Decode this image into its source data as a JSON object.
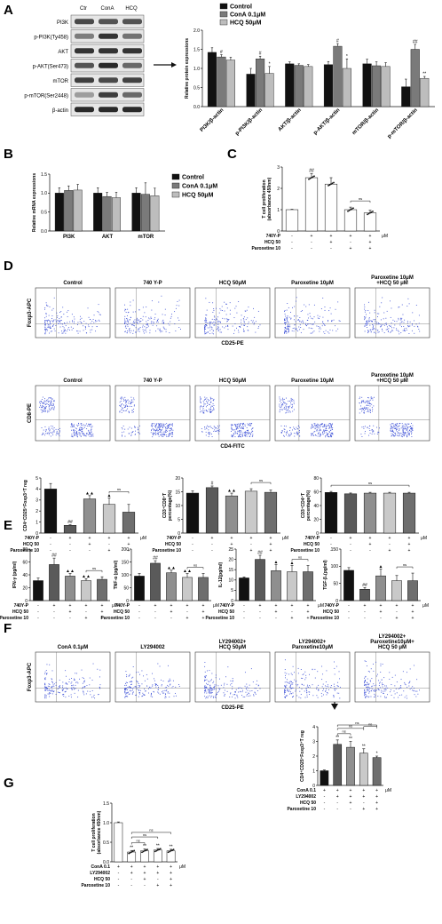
{
  "panel_labels": [
    "A",
    "B",
    "C",
    "D",
    "E",
    "F",
    "G"
  ],
  "colors": {
    "black": "#111111",
    "dark_gray": "#5a5a5a",
    "mid_gray": "#8f8f8f",
    "light_gray": "#c9c9c9",
    "lighter_gray": "#dedede",
    "white": "#ffffff",
    "flow_dots": "#3b4fd6"
  },
  "panel_a": {
    "blot_lanes": [
      "Ctr",
      "ConA",
      "HCQ"
    ],
    "blot_rows": [
      "PI3K",
      "p-PI3K(Ty458)",
      "AKT",
      "p-AKT(Ser473)",
      "mTOR",
      "p-mTOR(Ser2448)",
      "β-actin"
    ],
    "arrow_icon": "right-arrow-icon"
  },
  "panel_d": {
    "treg_titles": [
      "Control",
      "740 Y-P",
      "HCQ 50μM",
      "Paroxetine 10μM",
      "Paroxetine 10μM\n+HCQ 50 μM"
    ],
    "treg_ylabel": "Foxp3-APC",
    "treg_xlabel": "CD25-PE",
    "cd8_titles": [
      "Control",
      "740 Y-P",
      "HCQ 50μM",
      "Paroxetine 10μM",
      "Paroxetine 10μM\n+HCQ 50 μM"
    ],
    "cd8_ylabel": "CD8-PE",
    "cd8_xlabel": "CD4-FITC"
  },
  "panel_f": {
    "titles": [
      "ConA 0.1μM",
      "LY294002",
      "LY294002+\nHCQ 50μM",
      "LY294002+\nParoxetine10μM",
      "LY294002+\nParoxetine10μM+\nHCQ 50 μM"
    ],
    "ylabel": "Foxp3-APC",
    "xlabel": "CD25-PE",
    "arrow_icon": "down-arrow-icon"
  },
  "chart_data": [
    {
      "id": "A-bar",
      "type": "bar",
      "categories": [
        "PI3K/β-actin",
        "p-PI3K/β-actin",
        "AKT/β-actin",
        "p-AKT/β-actin",
        "mTOR/β-actin",
        "p-mTOR/β-actin"
      ],
      "series": [
        {
          "name": "Control",
          "values": [
            1.42,
            0.85,
            1.12,
            1.1,
            1.12,
            0.52
          ],
          "err": [
            0.12,
            0.15,
            0.05,
            0.08,
            0.12,
            0.2
          ],
          "color": "#111111"
        },
        {
          "name": "ConA 0.1μM",
          "values": [
            1.3,
            1.25,
            1.08,
            1.58,
            1.07,
            1.5
          ],
          "err": [
            0.06,
            0.07,
            0.04,
            0.07,
            0.1,
            0.13
          ],
          "color": "#7a7a7a"
        },
        {
          "name": "HCQ 50μM",
          "values": [
            1.22,
            0.87,
            1.05,
            1.0,
            1.05,
            0.74
          ],
          "err": [
            0.07,
            0.18,
            0.05,
            0.25,
            0.1,
            0.05
          ],
          "color": "#bdbdbd"
        }
      ],
      "ylabel": "Relative protein expressions",
      "ylim": [
        0,
        2
      ],
      "yticks": [
        "0.0",
        "0.5",
        "1.0",
        "1.5",
        "2.0"
      ],
      "marks": [
        [
          "",
          "#",
          ""
        ],
        [
          "",
          "#",
          "*"
        ],
        [
          "",
          "",
          ""
        ],
        [
          "",
          "#",
          "*"
        ],
        [
          "",
          "",
          ""
        ],
        [
          "",
          "##",
          "**"
        ]
      ],
      "legend": "top"
    },
    {
      "id": "B-bar",
      "type": "bar",
      "categories": [
        "PI3K",
        "AKT",
        "mTOR"
      ],
      "series": [
        {
          "name": "Control",
          "values": [
            1.0,
            1.0,
            1.0
          ],
          "err": [
            0.14,
            0.14,
            0.14
          ],
          "color": "#111111"
        },
        {
          "name": "ConA 0.1μM",
          "values": [
            1.07,
            0.91,
            0.97
          ],
          "err": [
            0.12,
            0.11,
            0.3
          ],
          "color": "#7a7a7a"
        },
        {
          "name": "HCQ 50μM",
          "values": [
            1.08,
            0.88,
            0.93
          ],
          "err": [
            0.15,
            0.14,
            0.2
          ],
          "color": "#bdbdbd"
        }
      ],
      "ylabel": "Relative mRNA expressions",
      "ylim": [
        0,
        1.5
      ],
      "yticks": [
        "0.0",
        "0.5",
        "1.0",
        "1.5"
      ],
      "legend": "right"
    },
    {
      "id": "C-bar",
      "type": "bar",
      "categories": [
        "1",
        "2",
        "3",
        "4",
        "5"
      ],
      "values": [
        1.0,
        2.5,
        2.2,
        1.0,
        0.85
      ],
      "err": [
        0.02,
        0.2,
        0.3,
        0.12,
        0.12
      ],
      "colors": [
        "#ffffff",
        "#ffffff",
        "#ffffff",
        "#ffffff",
        "#ffffff"
      ],
      "ylabel": "T cell proliferation\n(absorbance 450nm)",
      "ylim": [
        0,
        3
      ],
      "yticks": [
        "0",
        "1",
        "2",
        "3"
      ],
      "marks": [
        "",
        "##",
        "",
        "",
        ""
      ],
      "conditions": [
        [
          "740Y-P",
          "-",
          "+",
          "+",
          "+",
          "+"
        ],
        [
          "HCQ 50",
          "-",
          "-",
          "+",
          "-",
          "+"
        ],
        [
          "Paroxetine 10",
          "-",
          "-",
          "-",
          "+",
          "+"
        ]
      ],
      "unit": "μM",
      "brackets": [
        [
          3,
          4,
          "ns"
        ]
      ]
    },
    {
      "id": "D-treg-bar",
      "type": "bar",
      "categories": [
        "1",
        "2",
        "3",
        "4",
        "5"
      ],
      "values": [
        4.0,
        0.7,
        3.1,
        2.6,
        1.9
      ],
      "err": [
        0.5,
        0.05,
        0.3,
        0.6,
        0.7
      ],
      "colors": [
        "#111111",
        "#5a5a5a",
        "#8f8f8f",
        "#c9c9c9",
        "#6e6e6e"
      ],
      "ylabel": "CD4⁺CD25⁺Foxp3⁺T reg",
      "ylim": [
        0,
        5
      ],
      "yticks": [
        "0",
        "1",
        "2",
        "3",
        "4",
        "5"
      ],
      "marks": [
        "",
        "##",
        "▲▲",
        "▲",
        ""
      ],
      "conditions": [
        [
          "740Y-P",
          "-",
          "+",
          "+",
          "+",
          "+"
        ],
        [
          "HCQ 50",
          "-",
          "-",
          "+",
          "-",
          "+"
        ],
        [
          "Paroxetine 10",
          "-",
          "-",
          "-",
          "+",
          "+"
        ]
      ],
      "unit": "μM",
      "brackets": [
        [
          3,
          4,
          "ns"
        ]
      ]
    },
    {
      "id": "D-cd8-bar",
      "type": "bar",
      "categories": [
        "1",
        "2",
        "3",
        "4",
        "5"
      ],
      "values": [
        14.5,
        16.5,
        13.5,
        15.2,
        14.8
      ],
      "err": [
        0.8,
        0.6,
        1.0,
        0.9,
        0.8
      ],
      "colors": [
        "#111111",
        "#5a5a5a",
        "#8f8f8f",
        "#c9c9c9",
        "#6e6e6e"
      ],
      "ylabel": "CD3⁺CD8⁺T\npercentage(%)",
      "ylim": [
        0,
        20
      ],
      "yticks": [
        "0",
        "5",
        "10",
        "15",
        "20"
      ],
      "marks": [
        "",
        "#",
        "▲▲",
        "",
        ""
      ],
      "conditions": [
        [
          "740Y-P",
          "-",
          "+",
          "+",
          "+",
          "+"
        ],
        [
          "HCQ 50",
          "-",
          "-",
          "+",
          "-",
          "+"
        ],
        [
          "Paroxetine 10",
          "-",
          "-",
          "-",
          "+",
          "+"
        ]
      ],
      "unit": "μM",
      "brackets": [
        [
          3,
          4,
          "ns"
        ]
      ]
    },
    {
      "id": "D-cd4-bar",
      "type": "bar",
      "categories": [
        "1",
        "2",
        "3",
        "4",
        "5"
      ],
      "values": [
        59,
        57,
        58,
        58,
        58
      ],
      "err": [
        1.5,
        1.2,
        1.2,
        1.2,
        1.2
      ],
      "colors": [
        "#111111",
        "#5a5a5a",
        "#8f8f8f",
        "#c9c9c9",
        "#6e6e6e"
      ],
      "ylabel": "CD3⁺CD4⁺T\npercentage(%)",
      "ylim": [
        0,
        80
      ],
      "yticks": [
        "0",
        "20",
        "40",
        "60",
        "80"
      ],
      "marks": [
        "",
        "",
        "",
        "",
        ""
      ],
      "conditions": [
        [
          "740Y-P",
          "-",
          "+",
          "+",
          "+",
          "+"
        ],
        [
          "HCQ 50",
          "-",
          "-",
          "+",
          "-",
          "+"
        ],
        [
          "Paroxetine 10",
          "-",
          "-",
          "-",
          "+",
          "+"
        ]
      ],
      "unit": "μM",
      "brackets": [
        [
          0,
          4,
          "ns"
        ]
      ]
    },
    {
      "id": "E-ifn",
      "type": "bar",
      "categories": [
        "1",
        "2",
        "3",
        "4",
        "5"
      ],
      "values": [
        31,
        56,
        38,
        31,
        33
      ],
      "err": [
        4,
        10,
        4,
        3,
        4
      ],
      "colors": [
        "#111111",
        "#5a5a5a",
        "#8f8f8f",
        "#c9c9c9",
        "#6e6e6e"
      ],
      "ylabel": "IFN-γ (pg/ml)",
      "ylim": [
        0,
        80
      ],
      "yticks": [
        "0",
        "20",
        "40",
        "60",
        "80"
      ],
      "marks": [
        "",
        "##",
        "▲▲",
        "▲▲",
        ""
      ],
      "conditions": [
        [
          "740Y-P",
          "-",
          "+",
          "+",
          "+",
          "+"
        ],
        [
          "HCQ 50",
          "-",
          "-",
          "+",
          "-",
          "+"
        ],
        [
          "Paroxetine 10",
          "-",
          "-",
          "-",
          "+",
          "+"
        ]
      ],
      "unit": "μM",
      "brackets": [
        [
          3,
          4,
          "ns"
        ]
      ]
    },
    {
      "id": "E-tnf",
      "type": "bar",
      "categories": [
        "1",
        "2",
        "3",
        "4",
        "5"
      ],
      "values": [
        95,
        145,
        108,
        90,
        90
      ],
      "err": [
        10,
        10,
        10,
        15,
        15
      ],
      "colors": [
        "#111111",
        "#5a5a5a",
        "#8f8f8f",
        "#c9c9c9",
        "#6e6e6e"
      ],
      "ylabel": "TNF-α (pg/ml)",
      "ylim": [
        0,
        200
      ],
      "yticks": [
        "0",
        "50",
        "100",
        "150",
        "200"
      ],
      "marks": [
        "",
        "##",
        "▲▲",
        "▲▲",
        ""
      ],
      "conditions": [
        [
          "740Y-P",
          "-",
          "+",
          "+",
          "+",
          "+"
        ],
        [
          "HCQ 50",
          "-",
          "-",
          "+",
          "-",
          "+"
        ],
        [
          "Paroxetine 10",
          "-",
          "-",
          "-",
          "+",
          "+"
        ]
      ],
      "unit": "μM",
      "brackets": [
        [
          3,
          4,
          "ns"
        ]
      ]
    },
    {
      "id": "E-il12",
      "type": "bar",
      "categories": [
        "1",
        "2",
        "3",
        "4",
        "5"
      ],
      "values": [
        11,
        20,
        14.5,
        14,
        14
      ],
      "err": [
        0.5,
        2,
        3,
        3,
        3
      ],
      "colors": [
        "#111111",
        "#5a5a5a",
        "#8f8f8f",
        "#c9c9c9",
        "#6e6e6e"
      ],
      "ylabel": "IL-12(pg/ml)",
      "ylim": [
        0,
        25
      ],
      "yticks": [
        "0",
        "5",
        "10",
        "15",
        "20",
        "25"
      ],
      "marks": [
        "",
        "##",
        "▲",
        "▲",
        ""
      ],
      "conditions": [
        [
          "740Y-P",
          "-",
          "+",
          "+",
          "+",
          "+"
        ],
        [
          "HCQ 50",
          "-",
          "-",
          "+",
          "-",
          "+"
        ],
        [
          "Paroxetine 10",
          "-",
          "-",
          "-",
          "+",
          "+"
        ]
      ],
      "unit": "μM",
      "brackets": [
        [
          3,
          4,
          "ns"
        ]
      ]
    },
    {
      "id": "E-tgf",
      "type": "bar",
      "categories": [
        "1",
        "2",
        "3",
        "4",
        "5"
      ],
      "values": [
        88,
        33,
        72,
        58,
        58
      ],
      "err": [
        8,
        5,
        20,
        15,
        22
      ],
      "colors": [
        "#111111",
        "#5a5a5a",
        "#8f8f8f",
        "#c9c9c9",
        "#6e6e6e"
      ],
      "ylabel": "TGF-β₁(pg/ml)",
      "ylim": [
        0,
        150
      ],
      "yticks": [
        "0",
        "50",
        "100",
        "150"
      ],
      "marks": [
        "",
        "##",
        "▲",
        "",
        ""
      ],
      "conditions": [
        [
          "740Y-P",
          "-",
          "+",
          "+",
          "+",
          "+"
        ],
        [
          "HCQ 50",
          "-",
          "-",
          "+",
          "-",
          "+"
        ],
        [
          "Paroxetine 10",
          "-",
          "-",
          "-",
          "+",
          "+"
        ]
      ],
      "unit": "μM",
      "brackets": [
        [
          3,
          4,
          "ns"
        ]
      ]
    },
    {
      "id": "G-prolif",
      "type": "bar",
      "categories": [
        "1",
        "2",
        "3",
        "4",
        "5"
      ],
      "values": [
        1.0,
        0.25,
        0.28,
        0.3,
        0.28
      ],
      "err": [
        0.02,
        0.04,
        0.05,
        0.04,
        0.04
      ],
      "colors": [
        "#ffffff",
        "#ffffff",
        "#ffffff",
        "#ffffff",
        "#ffffff"
      ],
      "ylabel": "T cell proliferation\n(absorbance 450nm)",
      "ylim": [
        0,
        1.5
      ],
      "yticks": [
        "0.0",
        "0.5",
        "1.0",
        "1.5"
      ],
      "marks": [
        "",
        "**",
        "**",
        "**",
        "**"
      ],
      "conditions": [
        [
          "ConA 0.1",
          "+",
          "+",
          "+",
          "+",
          "+"
        ],
        [
          "LY294002",
          "-",
          "+",
          "+",
          "+",
          "+"
        ],
        [
          "HCQ 50",
          "-",
          "-",
          "+",
          "-",
          "+"
        ],
        [
          "Paroxetine 10",
          "-",
          "-",
          "-",
          "+",
          "+"
        ]
      ],
      "unit": "μM",
      "brackets": [
        [
          1,
          2,
          "ns"
        ],
        [
          1,
          3,
          "ns"
        ],
        [
          1,
          4,
          "ns"
        ]
      ]
    },
    {
      "id": "G-treg",
      "type": "bar",
      "categories": [
        "1",
        "2",
        "3",
        "4",
        "5"
      ],
      "values": [
        1.0,
        2.8,
        2.6,
        2.2,
        1.9
      ],
      "err": [
        0.05,
        0.3,
        0.4,
        0.3,
        0.1
      ],
      "colors": [
        "#111111",
        "#5a5a5a",
        "#8f8f8f",
        "#c9c9c9",
        "#6e6e6e"
      ],
      "ylabel": "CD4⁺CD25⁺Foxp3⁺T reg",
      "ylim": [
        0,
        4
      ],
      "yticks": [
        "0",
        "1",
        "2",
        "3",
        "4"
      ],
      "marks": [
        "",
        "**",
        "**",
        "**",
        "*"
      ],
      "conditions": [
        [
          "ConA 0.1",
          "+",
          "+",
          "+",
          "+",
          "+"
        ],
        [
          "LY294002",
          "-",
          "+",
          "+",
          "+",
          "+"
        ],
        [
          "HCQ 50",
          "-",
          "-",
          "+",
          "-",
          "+"
        ],
        [
          "Paroxetine 10",
          "-",
          "-",
          "-",
          "+",
          "+"
        ]
      ],
      "unit": "μM",
      "brackets": [
        [
          1,
          2,
          "ns"
        ],
        [
          1,
          3,
          "ns"
        ],
        [
          1,
          4,
          "ns"
        ],
        [
          3,
          4,
          "ns"
        ]
      ]
    }
  ]
}
